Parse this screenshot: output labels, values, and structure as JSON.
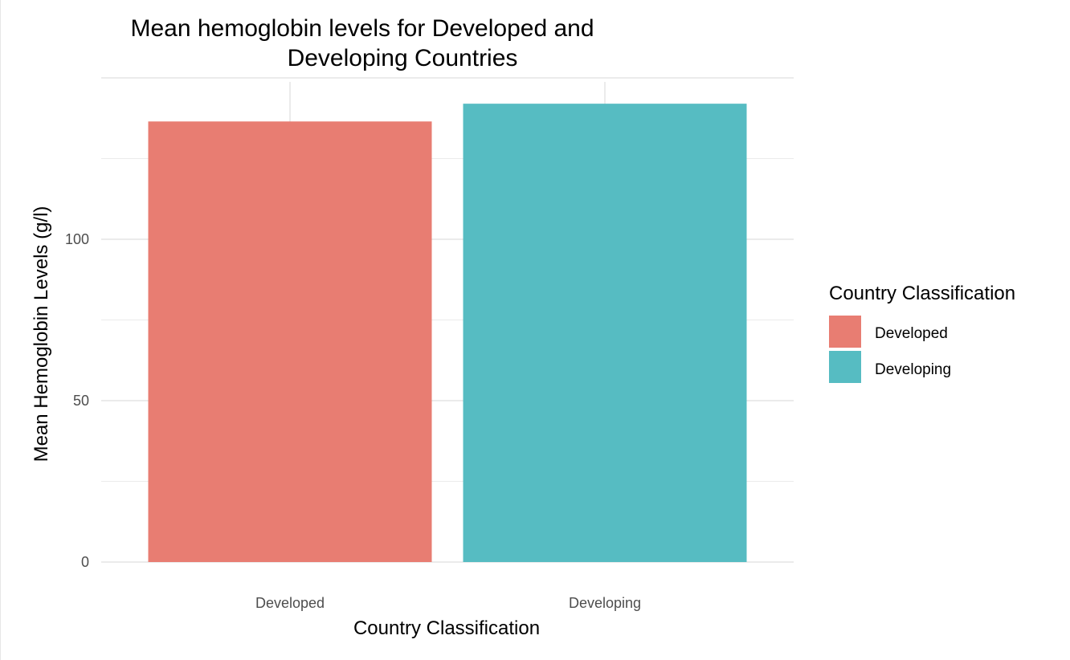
{
  "chart_data": {
    "type": "bar",
    "title_lines": [
      "Mean hemoglobin levels for Developed and",
      "Developing Countries"
    ],
    "xlabel": "Country Classification",
    "ylabel": "Mean Hemoglobin Levels (g/l)",
    "categories": [
      "Developed",
      "Developing"
    ],
    "values": [
      136.5,
      142
    ],
    "colors": [
      "#E87D72",
      "#56BCC2"
    ],
    "ylim": [
      0,
      150
    ],
    "y_ticks": [
      0,
      50,
      100
    ],
    "y_ticks_labels": [
      "0",
      "50",
      "100"
    ],
    "grid": true,
    "legend": {
      "title": "Country Classification",
      "position": "right",
      "entries": [
        "Developed",
        "Developing"
      ]
    }
  }
}
